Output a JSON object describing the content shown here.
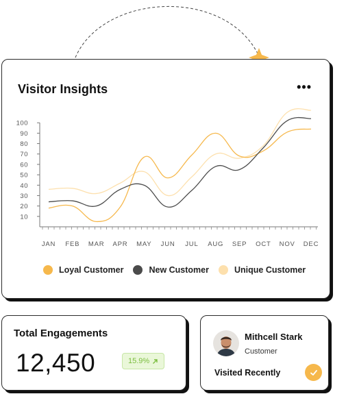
{
  "colors": {
    "loyal": "#f6b84c",
    "new": "#4b4b4b",
    "unique": "#fde0ad",
    "badge_text": "#7bbd3f",
    "accent": "#f6b84c"
  },
  "insights": {
    "title": "Visitor Insights",
    "menu_icon": "ellipsis-icon",
    "legend": [
      {
        "label": "Loyal Customer"
      },
      {
        "label": "New Customer"
      },
      {
        "label": "Unique Customer"
      }
    ]
  },
  "chart_data": {
    "type": "line",
    "title": "",
    "xlabel": "",
    "ylabel": "",
    "categories": [
      "JAN",
      "FEB",
      "MAR",
      "APR",
      "MAY",
      "JUN",
      "JUL",
      "AUG",
      "SEP",
      "OCT",
      "NOV",
      "DEC"
    ],
    "y_ticks": [
      10,
      20,
      30,
      40,
      50,
      60,
      70,
      80,
      90,
      100
    ],
    "ylim": [
      0,
      110
    ],
    "grid": false,
    "legend_position": "bottom",
    "series": [
      {
        "name": "Loyal Customer",
        "values": [
          18,
          20,
          5,
          19,
          67,
          47,
          69,
          90,
          68,
          73,
          91,
          94
        ]
      },
      {
        "name": "New Customer",
        "values": [
          24,
          25,
          20,
          36,
          40,
          19,
          35,
          58,
          55,
          76,
          102,
          104
        ]
      },
      {
        "name": "Unique Customer",
        "values": [
          36,
          37,
          32,
          42,
          53,
          30,
          48,
          70,
          66,
          78,
          110,
          112
        ]
      }
    ]
  },
  "engagements": {
    "title": "Total Engagements",
    "value": "12,450",
    "change": "15.9%",
    "change_icon": "arrow-up-right-icon"
  },
  "profile": {
    "name": "Mithcell Stark",
    "role": "Customer",
    "status": "Visited Recently",
    "avatar_icon": "user-avatar",
    "status_icon": "check-icon"
  }
}
